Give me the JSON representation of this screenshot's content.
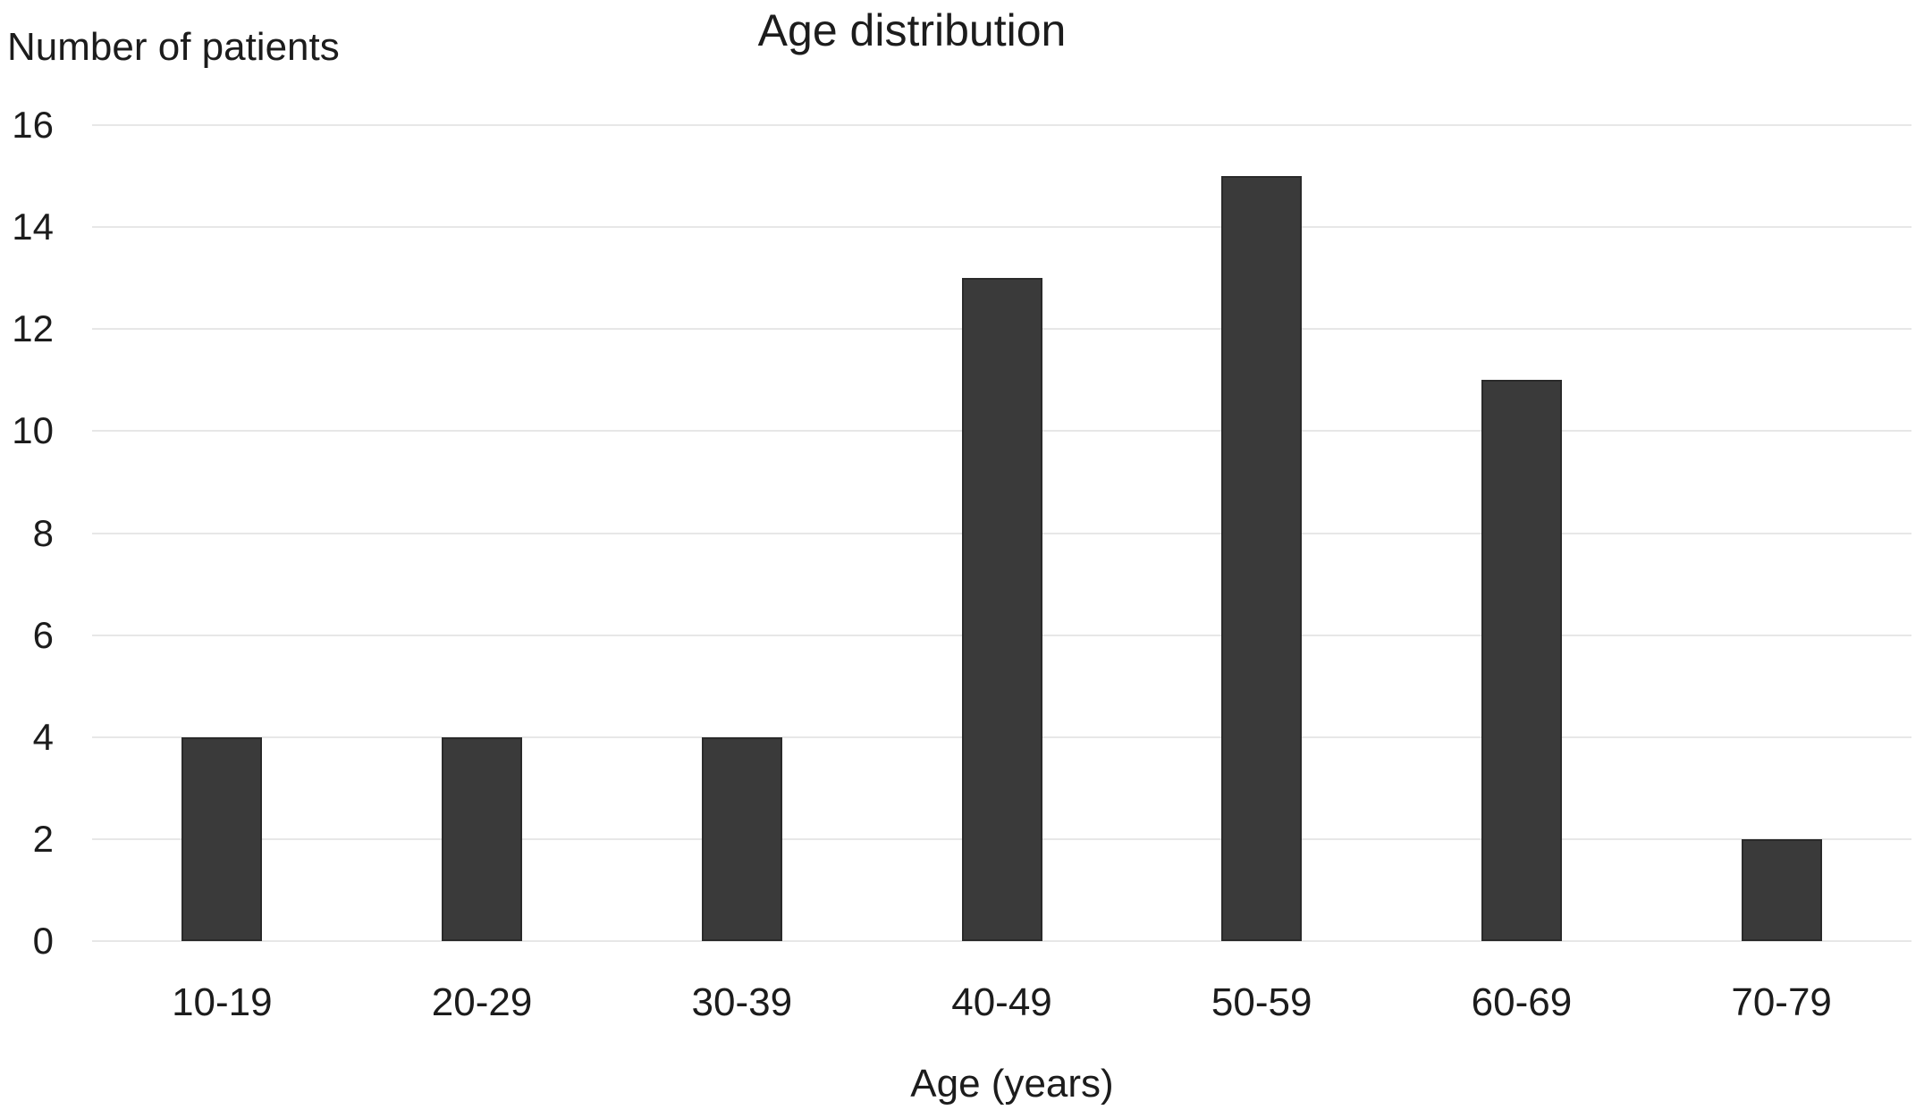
{
  "chart_data": {
    "type": "bar",
    "title": "Age distribution",
    "ylabel": "Number of patients",
    "xlabel": "Age (years)",
    "categories": [
      "10-19",
      "20-29",
      "30-39",
      "40-49",
      "50-59",
      "60-69",
      "70-79"
    ],
    "values": [
      4,
      4,
      4,
      13,
      15,
      11,
      2
    ],
    "ylim": [
      0,
      16
    ],
    "yticks": [
      0,
      2,
      4,
      6,
      8,
      10,
      12,
      14,
      16
    ],
    "grid": "horizontal",
    "legend": "none",
    "bar_color": "#3a3a3a",
    "bar_border_color": "#2a2a2a",
    "gridline_color": "#e7e7e7",
    "text_color": "#1c1c1c",
    "background_color": "#ffffff"
  }
}
